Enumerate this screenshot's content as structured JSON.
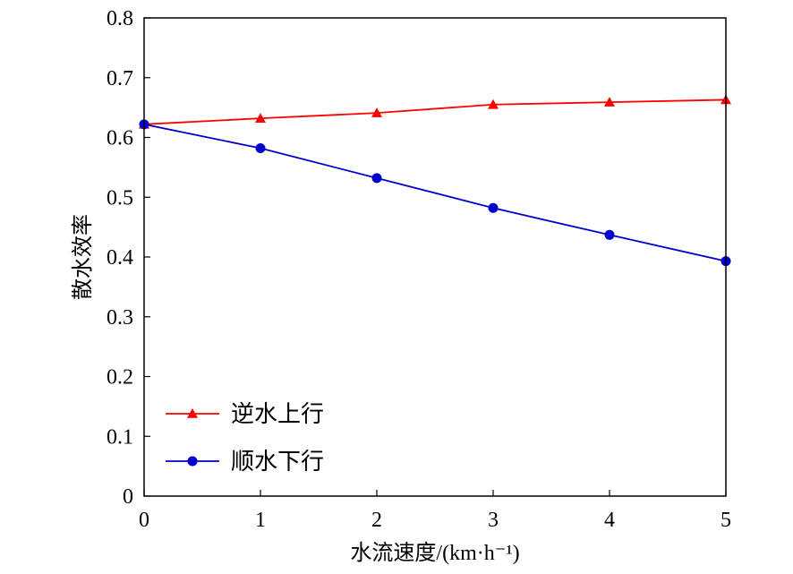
{
  "chart_data": {
    "type": "line",
    "x": [
      0,
      1,
      2,
      3,
      4,
      5
    ],
    "series": [
      {
        "name": "逆水上行",
        "values": [
          0.622,
          0.632,
          0.641,
          0.655,
          0.659,
          0.663
        ],
        "color": "#ff0000",
        "marker": "triangle"
      },
      {
        "name": "顺水下行",
        "values": [
          0.622,
          0.582,
          0.532,
          0.482,
          0.437,
          0.393
        ],
        "color": "#0000cc",
        "marker": "circle"
      }
    ],
    "xlabel": "水流速度/(km·h⁻¹)",
    "ylabel": "散水效率",
    "xlim": [
      0,
      5
    ],
    "ylim": [
      0,
      0.8
    ],
    "xticks": [
      "0",
      "1",
      "2",
      "3",
      "4",
      "5"
    ],
    "yticks": [
      "0",
      "0.1",
      "0.2",
      "0.3",
      "0.4",
      "0.5",
      "0.6",
      "0.7",
      "0.8"
    ],
    "grid": false,
    "legend_position": "bottom-left"
  }
}
